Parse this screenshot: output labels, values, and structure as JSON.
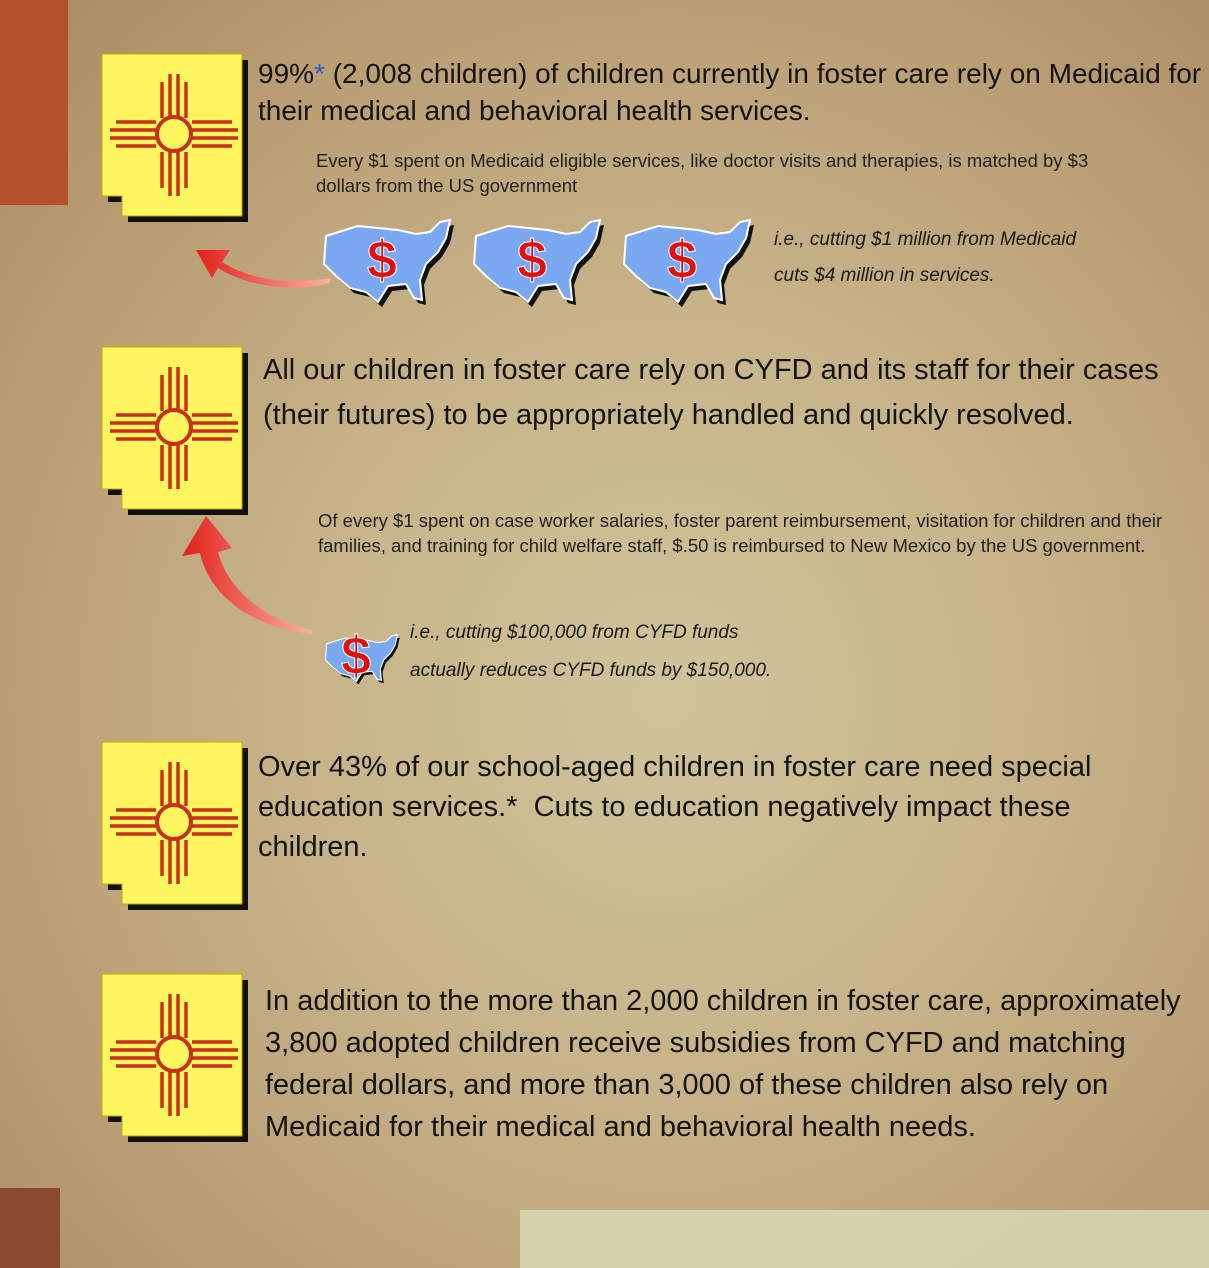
{
  "blocks": [
    {
      "lead": "99%",
      "asterisk": "*",
      "text": " (2,008 children) of children currently in foster care rely on Medicaid for their medical and behavioral health services.",
      "detail": "Every $1 spent on Medicaid eligible services, like doctor visits and therapies, is matched by $3 dollars from the US government",
      "note": [
        "i.e., cutting $1 million from Medicaid",
        "cuts $4 million in services."
      ],
      "dollar_signs": [
        "$",
        "$",
        "$"
      ]
    },
    {
      "text": "All our children in foster care rely on CYFD and its staff for their cases (their futures) to be appropriately handled and quickly resolved.",
      "detail": "Of every $1 spent on case worker salaries, foster parent reimbursement, visitation for children and their families, and training for child welfare staff, $.50 is reimbursed to New Mexico by the US government.",
      "note": [
        "i.e., cutting $100,000 from CYFD funds",
        "actually reduces CYFD funds by $150,000."
      ],
      "dollar_signs": [
        "$"
      ]
    },
    {
      "text": "Over 43% of our school-aged children in foster care need special education services.*  Cuts to education negatively impact these children."
    },
    {
      "text": "In addition to the more than 2,000 children in foster care, approximately 3,800 adopted children receive subsidies from CYFD and matching federal dollars, and more than 3,000 of these children also rely on Medicaid for their medical and behavioral health needs."
    }
  ]
}
